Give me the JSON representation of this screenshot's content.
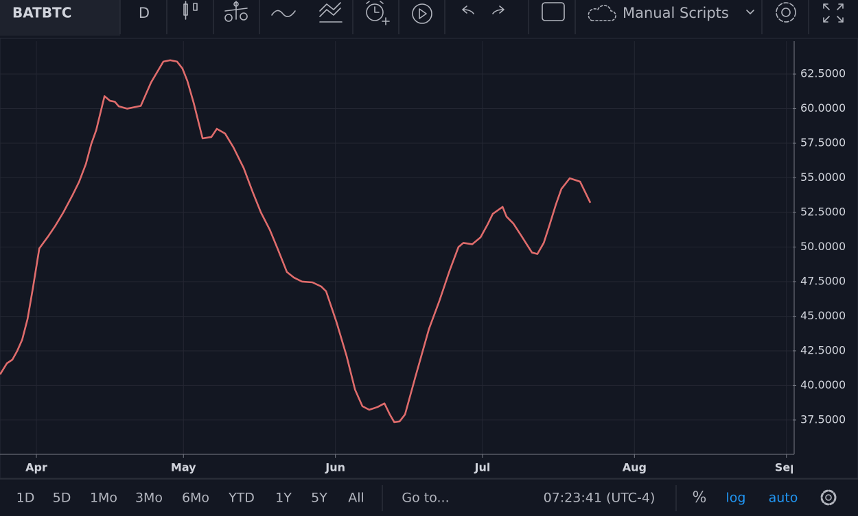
{
  "toolbar": {
    "symbol": "BATBTC",
    "interval": "D",
    "scripts": "Manual Scripts"
  },
  "chart_data": {
    "type": "line",
    "color": "#e06c6c",
    "grid": true,
    "log_scale": false,
    "x": [
      -7.4,
      -6.0,
      -4.9,
      -3.9,
      -2.9,
      -1.8,
      -0.7,
      0.6,
      2.4,
      3.8,
      5.5,
      7.3,
      8.7,
      10.1,
      11.2,
      12.2,
      13.9,
      15.0,
      16.0,
      16.8,
      18.5,
      21.3,
      23.4,
      25.9,
      27.3,
      28.7,
      29.8,
      30.8,
      32.1,
      33.9,
      35.7,
      36.8,
      38.5,
      40.2,
      42.3,
      44.1,
      45.8,
      47.6,
      49.3,
      51.1,
      52.5,
      54.2,
      56.3,
      58.1,
      59.1,
      61.2,
      63.3,
      65.0,
      66.5,
      67.9,
      69.6,
      71.0,
      72.1,
      73.0,
      74.1,
      75.2,
      77.3,
      80.1,
      82.2,
      84.3,
      86.1,
      87.1,
      88.9,
      90.6,
      92.0,
      93.1,
      95.1,
      95.9,
      97.3,
      99.0,
      101.1,
      102.2,
      103.5,
      104.6,
      106.0,
      107.1,
      108.8,
      110.9,
      113.0
    ],
    "values": [
      40.8,
      41.6,
      41.86,
      42.5,
      43.3,
      44.8,
      47.05,
      49.9,
      50.77,
      51.5,
      52.5,
      53.7,
      54.7,
      56.0,
      57.45,
      58.44,
      60.9,
      60.57,
      60.5,
      60.17,
      60.0,
      60.2,
      61.9,
      63.4,
      63.5,
      63.4,
      62.9,
      62.0,
      60.4,
      57.85,
      57.95,
      58.54,
      58.2,
      57.2,
      55.7,
      54.0,
      52.5,
      51.26,
      49.8,
      48.2,
      47.8,
      47.5,
      47.45,
      47.15,
      46.8,
      44.6,
      42.1,
      39.7,
      38.5,
      38.24,
      38.44,
      38.7,
      37.9,
      37.35,
      37.4,
      37.9,
      40.6,
      44.1,
      46.1,
      48.3,
      50.0,
      50.3,
      50.2,
      50.7,
      51.6,
      52.4,
      52.9,
      52.2,
      51.7,
      50.77,
      49.6,
      49.5,
      50.3,
      51.5,
      53.1,
      54.2,
      54.97,
      54.73,
      53.2
    ],
    "xlim": [
      -7.42,
      154.3
    ],
    "xticks": [
      {
        "value": 0,
        "label": "Apr"
      },
      {
        "value": 30,
        "label": "May"
      },
      {
        "value": 61,
        "label": "Jun"
      },
      {
        "value": 91,
        "label": "Jul"
      },
      {
        "value": 122,
        "label": "Aug"
      },
      {
        "value": 153,
        "label": "Sep"
      }
    ],
    "ylim": [
      35.02,
      64.88
    ],
    "yticks": [
      {
        "value": 37.5,
        "label": "37.5000"
      },
      {
        "value": 40,
        "label": "40.0000"
      },
      {
        "value": 42.5,
        "label": "42.5000"
      },
      {
        "value": 45,
        "label": "45.0000"
      },
      {
        "value": 47.5,
        "label": "47.5000"
      },
      {
        "value": 50,
        "label": "50.0000"
      },
      {
        "value": 52.5,
        "label": "52.5000"
      },
      {
        "value": 55,
        "label": "55.0000"
      },
      {
        "value": 57.5,
        "label": "57.5000"
      },
      {
        "value": 60,
        "label": "60.0000"
      },
      {
        "value": 62.5,
        "label": "62.5000"
      }
    ]
  },
  "bottom_bar": {
    "ranges": [
      "1D",
      "5D",
      "1Mo",
      "3Mo",
      "6Mo",
      "YTD",
      "1Y",
      "5Y",
      "All"
    ],
    "goto": "Go to...",
    "clock": "07:23:41 (UTC-4)",
    "percent": "%",
    "log": "log",
    "auto": "auto"
  }
}
